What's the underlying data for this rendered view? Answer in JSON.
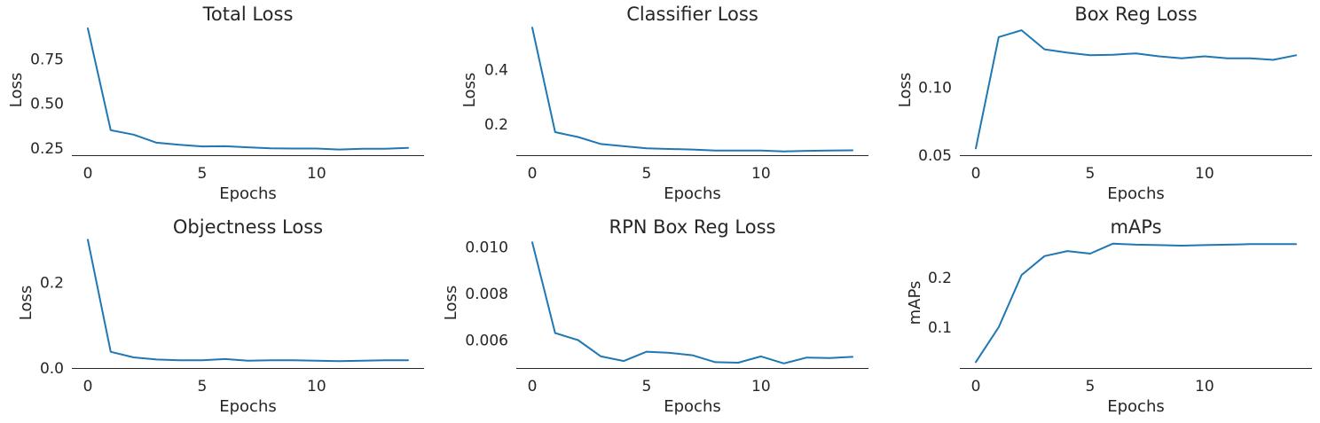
{
  "chart_data": [
    {
      "type": "line",
      "title": "Total Loss",
      "xlabel": "Epochs",
      "ylabel": "Loss",
      "xlim": [
        -0.7,
        14.7
      ],
      "ylim": [
        0.21,
        0.94
      ],
      "xticks": [
        0,
        5,
        10
      ],
      "yticks": [
        0.25,
        0.5,
        0.75
      ],
      "ytick_labels": [
        "0.25",
        "0.50",
        "0.75"
      ],
      "grid": false,
      "color": "#1f77b4",
      "x": [
        0,
        1,
        2,
        3,
        4,
        5,
        6,
        7,
        8,
        9,
        10,
        11,
        12,
        13,
        14
      ],
      "y": [
        0.92,
        0.35,
        0.325,
        0.28,
        0.268,
        0.259,
        0.26,
        0.254,
        0.248,
        0.247,
        0.247,
        0.242,
        0.246,
        0.246,
        0.251
      ]
    },
    {
      "type": "line",
      "title": "Classifier Loss",
      "xlabel": "Epochs",
      "ylabel": "Loss",
      "xlim": [
        -0.7,
        14.7
      ],
      "ylim": [
        0.085,
        0.565
      ],
      "xticks": [
        0,
        5,
        10
      ],
      "yticks": [
        0.2,
        0.4
      ],
      "ytick_labels": [
        "0.2",
        "0.4"
      ],
      "grid": false,
      "color": "#1f77b4",
      "x": [
        0,
        1,
        2,
        3,
        4,
        5,
        6,
        7,
        8,
        9,
        10,
        11,
        12,
        13,
        14
      ],
      "y": [
        0.555,
        0.17,
        0.152,
        0.126,
        0.118,
        0.11,
        0.108,
        0.106,
        0.102,
        0.102,
        0.102,
        0.099,
        0.101,
        0.102,
        0.103
      ]
    },
    {
      "type": "line",
      "title": "Box Reg Loss",
      "xlabel": "Epochs",
      "ylabel": "Loss",
      "xlim": [
        -0.7,
        14.7
      ],
      "ylim": [
        0.05,
        0.146
      ],
      "xticks": [
        0,
        5,
        10
      ],
      "yticks": [
        0.05,
        0.1
      ],
      "ytick_labels": [
        "0.05",
        "0.10"
      ],
      "grid": false,
      "color": "#1f77b4",
      "x": [
        0,
        1,
        2,
        3,
        4,
        5,
        6,
        7,
        8,
        9,
        10,
        11,
        12,
        13,
        14
      ],
      "y": [
        0.055,
        0.137,
        0.142,
        0.128,
        0.1255,
        0.1236,
        0.124,
        0.125,
        0.1228,
        0.1213,
        0.1228,
        0.1213,
        0.1213,
        0.1202,
        0.1236
      ]
    },
    {
      "type": "line",
      "title": "Objectness Loss",
      "xlabel": "Epochs",
      "ylabel": "Loss",
      "xlim": [
        -0.7,
        14.7
      ],
      "ylim": [
        0.0,
        0.305
      ],
      "xticks": [
        0,
        5,
        10
      ],
      "yticks": [
        0.0,
        0.2
      ],
      "ytick_labels": [
        "0.0",
        "0.2"
      ],
      "grid": false,
      "color": "#1f77b4",
      "x": [
        0,
        1,
        2,
        3,
        4,
        5,
        6,
        7,
        8,
        9,
        10,
        11,
        12,
        13,
        14
      ],
      "y": [
        0.3,
        0.038,
        0.025,
        0.02,
        0.018,
        0.018,
        0.021,
        0.017,
        0.018,
        0.018,
        0.017,
        0.016,
        0.017,
        0.018,
        0.018
      ]
    },
    {
      "type": "line",
      "title": "RPN Box Reg Loss",
      "xlabel": "Epochs",
      "ylabel": "Loss",
      "xlim": [
        -0.7,
        14.7
      ],
      "ylim": [
        0.0048,
        0.0104
      ],
      "xticks": [
        0,
        5,
        10
      ],
      "yticks": [
        0.006,
        0.008,
        0.01
      ],
      "ytick_labels": [
        "0.006",
        "0.008",
        "0.010"
      ],
      "grid": false,
      "color": "#1f77b4",
      "x": [
        0,
        1,
        2,
        3,
        4,
        5,
        6,
        7,
        8,
        9,
        10,
        11,
        12,
        13,
        14
      ],
      "y": [
        0.0102,
        0.0063,
        0.006,
        0.0053,
        0.0051,
        0.0055,
        0.00545,
        0.00535,
        0.00505,
        0.00503,
        0.0053,
        0.005,
        0.00525,
        0.00523,
        0.00528
      ]
    },
    {
      "type": "line",
      "title": "mAPs",
      "xlabel": "Epochs",
      "ylabel": "mAPs",
      "xlim": [
        -0.7,
        14.7
      ],
      "ylim": [
        0.018,
        0.28
      ],
      "xticks": [
        0,
        5,
        10
      ],
      "yticks": [
        0.1,
        0.2
      ],
      "ytick_labels": [
        "0.1",
        "0.2"
      ],
      "grid": false,
      "color": "#1f77b4",
      "x": [
        0,
        1,
        2,
        3,
        4,
        5,
        6,
        7,
        8,
        9,
        10,
        11,
        12,
        13,
        14
      ],
      "y": [
        0.03,
        0.1,
        0.205,
        0.243,
        0.253,
        0.248,
        0.268,
        0.266,
        0.265,
        0.264,
        0.265,
        0.266,
        0.267,
        0.267,
        0.267
      ]
    }
  ]
}
